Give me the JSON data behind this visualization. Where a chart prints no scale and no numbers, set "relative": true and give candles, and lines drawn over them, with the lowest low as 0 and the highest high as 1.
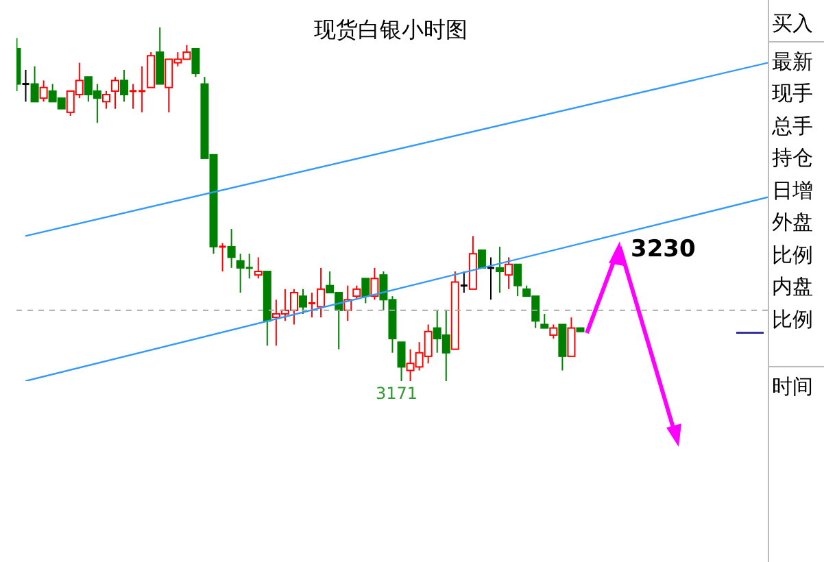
{
  "chart_data": {
    "type": "candlestick",
    "title": "现货白银小时图",
    "relative": true,
    "categories": [
      null,
      null,
      null,
      null,
      null,
      null,
      null,
      null,
      null,
      null,
      null,
      null,
      null,
      null,
      null,
      null,
      null,
      null,
      null,
      null,
      null,
      null,
      null,
      null,
      null,
      null,
      null,
      null,
      null,
      null,
      null,
      null,
      null,
      null,
      null,
      null,
      null,
      null,
      null,
      null,
      null,
      null,
      null,
      null,
      null,
      null,
      null,
      null,
      null,
      null,
      null,
      null,
      null,
      null,
      null,
      null,
      null,
      null,
      null,
      null,
      null,
      null,
      null,
      null,
      null,
      null,
      null,
      null,
      null,
      null,
      null,
      null,
      null,
      null,
      null,
      null,
      null,
      null,
      null,
      null,
      null,
      null,
      null,
      null,
      null
    ],
    "ohlc": [
      [
        0.94,
        0.97,
        0.82,
        0.84
      ],
      [
        0.84,
        0.88,
        0.79,
        0.84
      ],
      [
        0.84,
        0.89,
        0.79,
        0.79
      ],
      [
        0.8,
        0.85,
        0.79,
        0.83
      ],
      [
        0.82,
        0.84,
        0.79,
        0.79
      ],
      [
        0.8,
        0.8,
        0.77,
        0.77
      ],
      [
        0.76,
        0.82,
        0.75,
        0.82
      ],
      [
        0.81,
        0.9,
        0.8,
        0.85
      ],
      [
        0.86,
        0.86,
        0.79,
        0.81
      ],
      [
        0.82,
        0.84,
        0.73,
        0.8
      ],
      [
        0.79,
        0.82,
        0.77,
        0.81
      ],
      [
        0.82,
        0.86,
        0.77,
        0.85
      ],
      [
        0.85,
        0.88,
        0.79,
        0.81
      ],
      [
        0.82,
        0.84,
        0.77,
        0.82
      ],
      [
        0.82,
        0.89,
        0.76,
        0.82
      ],
      [
        0.83,
        0.93,
        0.83,
        0.92
      ],
      [
        0.93,
        1.0,
        0.84,
        0.84
      ],
      [
        0.83,
        0.91,
        0.76,
        0.91
      ],
      [
        0.9,
        0.93,
        0.89,
        0.91
      ],
      [
        0.91,
        0.95,
        0.91,
        0.93
      ],
      [
        0.94,
        0.94,
        0.86,
        0.87
      ],
      [
        0.84,
        0.86,
        0.63,
        0.63
      ],
      [
        0.64,
        0.64,
        0.36,
        0.38
      ],
      [
        0.38,
        0.39,
        0.31,
        0.38
      ],
      [
        0.38,
        0.43,
        0.32,
        0.35
      ],
      [
        0.34,
        0.36,
        0.25,
        0.32
      ],
      [
        0.32,
        0.36,
        0.29,
        0.32
      ],
      [
        0.3,
        0.35,
        0.29,
        0.31
      ],
      [
        0.31,
        0.31,
        0.1,
        0.17
      ],
      [
        0.18,
        0.23,
        0.1,
        0.19
      ],
      [
        0.19,
        0.26,
        0.17,
        0.2
      ],
      [
        0.2,
        0.26,
        0.16,
        0.25
      ],
      [
        0.24,
        0.26,
        0.19,
        0.21
      ],
      [
        0.22,
        0.25,
        0.18,
        0.22
      ],
      [
        0.21,
        0.32,
        0.18,
        0.26
      ],
      [
        0.27,
        0.31,
        0.25,
        0.25
      ],
      [
        0.25,
        0.25,
        0.09,
        0.2
      ],
      [
        0.2,
        0.27,
        0.17,
        0.23
      ],
      [
        0.24,
        0.27,
        0.23,
        0.26
      ],
      [
        0.29,
        0.29,
        0.22,
        0.24
      ],
      [
        0.24,
        0.32,
        0.23,
        0.29
      ],
      [
        0.3,
        0.31,
        0.2,
        0.23
      ],
      [
        0.23,
        0.24,
        0.08,
        0.12
      ],
      [
        0.11,
        0.11,
        0.0,
        0.04
      ],
      [
        0.03,
        0.09,
        0.0,
        0.05
      ],
      [
        0.04,
        0.11,
        0.03,
        0.08
      ],
      [
        0.07,
        0.16,
        0.05,
        0.14
      ],
      [
        0.15,
        0.2,
        0.08,
        0.12
      ],
      [
        0.13,
        0.2,
        0.0,
        0.08
      ],
      [
        0.09,
        0.31,
        0.09,
        0.28
      ],
      [
        0.27,
        0.31,
        0.25,
        0.27
      ],
      [
        0.26,
        0.41,
        0.26,
        0.36
      ],
      [
        0.37,
        0.37,
        0.32,
        0.32
      ],
      [
        0.32,
        0.35,
        0.23,
        0.32
      ],
      [
        0.32,
        0.38,
        0.25,
        0.31
      ],
      [
        0.3,
        0.35,
        0.26,
        0.33
      ],
      [
        0.33,
        0.33,
        0.24,
        0.27
      ],
      [
        0.26,
        0.27,
        0.24,
        0.24
      ],
      [
        0.24,
        0.24,
        0.15,
        0.17
      ],
      [
        0.16,
        0.19,
        0.15,
        0.15
      ],
      [
        0.13,
        0.16,
        0.12,
        0.15
      ],
      [
        0.16,
        0.16,
        0.03,
        0.07
      ],
      [
        0.07,
        0.18,
        0.07,
        0.15
      ],
      [
        0.15,
        0.15,
        0.14,
        0.14
      ],
      null,
      null,
      null,
      null,
      null,
      null,
      null,
      null,
      null,
      null,
      null,
      null,
      null,
      null,
      null,
      null,
      null,
      null,
      null,
      null,
      null
    ],
    "colors": [
      "#008000",
      "#000000",
      "#008000",
      "#ff0000",
      "#008000",
      "#008000",
      "#ff0000",
      "#ff0000",
      "#008000",
      "#008000",
      "#ff0000",
      "#ff0000",
      "#008000",
      "#ff0000",
      "#ff0000",
      "#ff0000",
      "#008000",
      "#ff0000",
      "#ff0000",
      "#ff0000",
      "#008000",
      "#008000",
      "#008000",
      "#ff0000",
      "#008000",
      "#008000",
      "#008000",
      "#ff0000",
      "#008000",
      "#ff0000",
      "#ff0000",
      "#ff0000",
      "#008000",
      "#ff0000",
      "#ff0000",
      "#008000",
      "#008000",
      "#ff0000",
      "#ff0000",
      "#008000",
      "#ff0000",
      "#008000",
      "#008000",
      "#008000",
      "#ff0000",
      "#ff0000",
      "#ff0000",
      "#008000",
      "#008000",
      "#ff0000",
      "#000000",
      "#ff0000",
      "#008000",
      "#000000",
      "#008000",
      "#ff0000",
      "#008000",
      "#008000",
      "#008000",
      "#008000",
      "#ff0000",
      "#008000",
      "#ff0000",
      "#008000",
      null,
      null,
      null,
      null,
      null,
      null,
      null,
      null,
      null,
      null,
      null,
      null,
      null,
      null,
      null,
      null,
      null,
      null,
      null,
      null,
      null
    ],
    "series": [
      {
        "type": "line",
        "color": "#3399ff",
        "values": [
          null,
          0.41,
          null,
          null,
          null,
          null,
          null,
          null,
          null,
          null,
          null,
          null,
          null,
          null,
          null,
          null,
          null,
          null,
          null,
          null,
          null,
          null,
          null,
          null,
          null,
          null,
          null,
          null,
          null,
          null,
          null,
          null,
          null,
          null,
          null,
          null,
          null,
          null,
          null,
          null,
          null,
          null,
          null,
          null,
          null,
          null,
          null,
          null,
          null,
          null,
          null,
          null,
          null,
          null,
          null,
          null,
          null,
          null,
          null,
          null,
          null,
          null,
          null,
          null,
          null,
          null,
          null,
          null,
          null,
          null,
          null,
          null,
          null,
          null,
          null,
          null,
          null,
          null,
          null,
          null,
          null,
          null,
          null,
          null,
          0.9
        ]
      },
      {
        "type": "line",
        "color": "#3399ff",
        "values": [
          null,
          0.0,
          null,
          null,
          null,
          null,
          null,
          null,
          null,
          null,
          null,
          null,
          null,
          null,
          null,
          null,
          null,
          null,
          null,
          null,
          null,
          null,
          null,
          null,
          null,
          null,
          null,
          null,
          null,
          null,
          null,
          null,
          null,
          null,
          null,
          null,
          null,
          null,
          null,
          null,
          null,
          null,
          null,
          null,
          null,
          null,
          null,
          null,
          null,
          null,
          null,
          null,
          null,
          null,
          null,
          null,
          null,
          null,
          null,
          null,
          null,
          null,
          null,
          null,
          null,
          null,
          null,
          null,
          null,
          null,
          null,
          null,
          null,
          null,
          null,
          null,
          null,
          null,
          null,
          null,
          null,
          null,
          null,
          null,
          0.52
        ]
      }
    ],
    "ref_lines": [
      {
        "axis": "y",
        "value": 0.2,
        "color": "#aaaaaa",
        "line_style": "dashed"
      }
    ],
    "annotations": [
      "3171",
      "3230",
      "买入",
      "最新",
      "现手",
      "总手",
      "持仓",
      "日增",
      "外盘",
      "比例",
      "内盘",
      "比例",
      "时间"
    ]
  }
}
